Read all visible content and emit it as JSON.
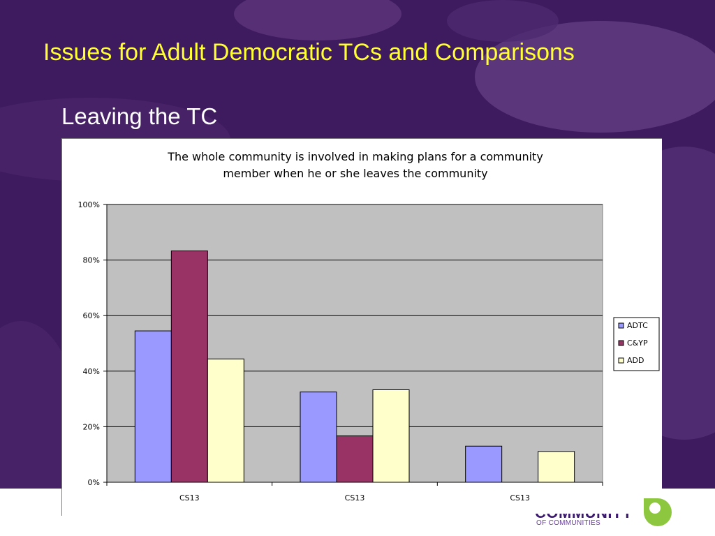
{
  "slide": {
    "title": "Issues for Adult Democratic TCs and Comparisons",
    "subtitle": "Leaving the TC",
    "bg_color": "#3e1a5e",
    "title_color": "#ffff33",
    "logo_text": "COMMUNITY",
    "logo_subtext": "OF COMMUNITIES",
    "logo_color": "#3b1a6e",
    "logo_leaf_color": "#8dc63f"
  },
  "chart_data": {
    "type": "bar",
    "title": "The whole community is involved in making plans for a community member when he or she leaves the community",
    "title_lines": [
      "The whole community is involved in making plans for a community",
      "member when he or she leaves the community"
    ],
    "categories": [
      "CS13",
      "CS13",
      "CS13"
    ],
    "series": [
      {
        "name": "ADTC",
        "values": [
          54.5,
          32.5,
          13
        ],
        "color": "#9999ff"
      },
      {
        "name": "C&YP",
        "values": [
          83.3,
          16.7,
          0
        ],
        "color": "#993366"
      },
      {
        "name": "ADD",
        "values": [
          44.4,
          33.3,
          11.1
        ],
        "color": "#ffffcc"
      }
    ],
    "ylim": [
      0,
      100
    ],
    "yticks": [
      "0%",
      "20%",
      "40%",
      "60%",
      "80%",
      "100%"
    ],
    "ytick_values": [
      0,
      20,
      40,
      60,
      80,
      100
    ],
    "xlabel": "",
    "ylabel": "",
    "grid": true,
    "plot_bg": "#c0c0c0",
    "legend_position": "right"
  }
}
